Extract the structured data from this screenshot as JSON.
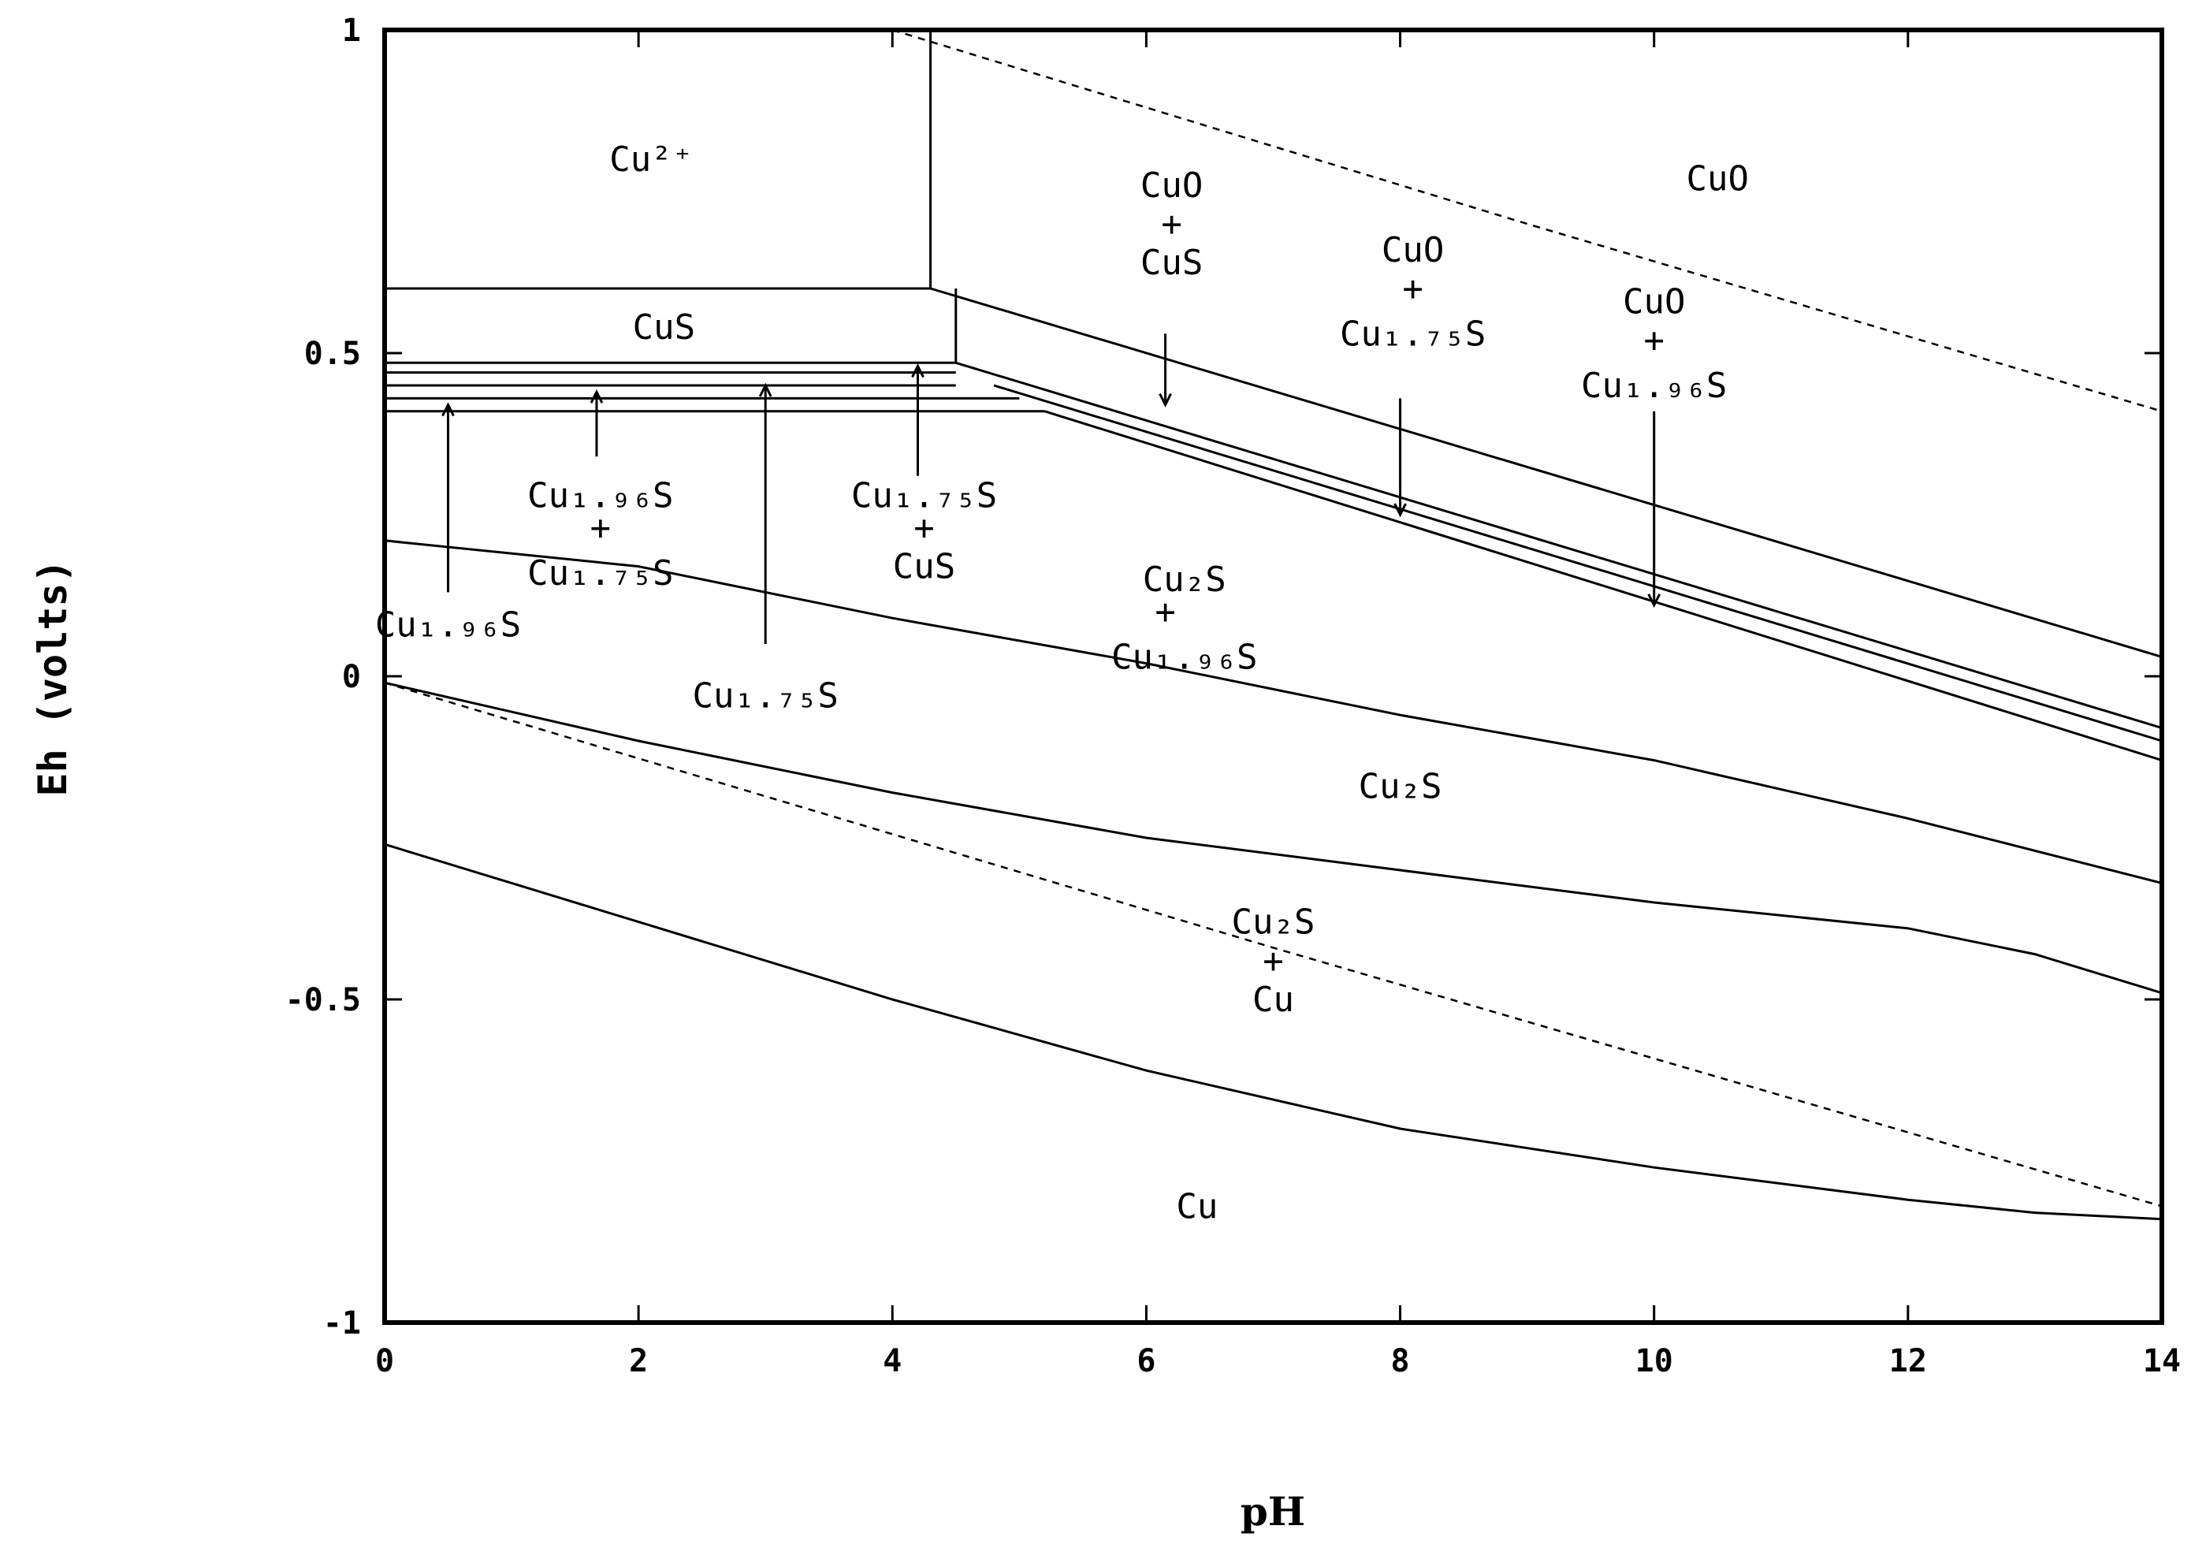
{
  "chart_data": {
    "type": "line",
    "title": "",
    "xlabel": "pH",
    "ylabel": "Eh (volts)",
    "xlim": [
      0,
      14
    ],
    "ylim": [
      -1,
      1
    ],
    "x_ticks": [
      0,
      2,
      4,
      6,
      8,
      10,
      12,
      14
    ],
    "y_ticks": [
      -1,
      -0.5,
      0,
      0.5,
      1
    ],
    "x_tick_labels": [
      "0",
      "2",
      "4",
      "6",
      "8",
      "10",
      "12",
      "14"
    ],
    "y_tick_labels": [
      "-1",
      "-0.5",
      "0",
      "0.5",
      "1"
    ],
    "grid": false,
    "water_stability_lines": [
      {
        "style": "dashed",
        "points": [
          [
            4.0,
            1.0
          ],
          [
            9.0,
            0.7
          ],
          [
            14.0,
            0.41
          ]
        ]
      },
      {
        "style": "dashed",
        "points": [
          [
            0.0,
            -0.01
          ],
          [
            7.0,
            -0.42
          ],
          [
            14.0,
            -0.82
          ]
        ]
      }
    ],
    "boundaries": [
      {
        "points": [
          [
            0.0,
            0.6
          ],
          [
            4.3,
            0.6
          ]
        ]
      },
      {
        "points": [
          [
            4.3,
            0.6
          ],
          [
            4.3,
            1.0
          ]
        ]
      },
      {
        "points": [
          [
            4.3,
            0.6
          ],
          [
            14.0,
            0.03
          ]
        ]
      },
      {
        "points": [
          [
            4.5,
            0.485
          ],
          [
            4.5,
            0.6
          ]
        ]
      },
      {
        "points": [
          [
            0.0,
            0.485
          ],
          [
            4.5,
            0.485
          ]
        ]
      },
      {
        "points": [
          [
            0.0,
            0.47
          ],
          [
            4.5,
            0.47
          ]
        ]
      },
      {
        "points": [
          [
            0.0,
            0.45
          ],
          [
            4.5,
            0.45
          ]
        ]
      },
      {
        "points": [
          [
            0.0,
            0.43
          ],
          [
            5.0,
            0.43
          ]
        ]
      },
      {
        "points": [
          [
            0.0,
            0.41
          ],
          [
            5.2,
            0.41
          ]
        ]
      },
      {
        "points": [
          [
            4.5,
            0.485
          ],
          [
            14.0,
            -0.08
          ]
        ]
      },
      {
        "points": [
          [
            4.8,
            0.45
          ],
          [
            14.0,
            -0.1
          ]
        ]
      },
      {
        "points": [
          [
            5.2,
            0.41
          ],
          [
            14.0,
            -0.13
          ]
        ]
      },
      {
        "points": [
          [
            0.0,
            0.21
          ],
          [
            2.0,
            0.17
          ],
          [
            4.0,
            0.09
          ],
          [
            6.0,
            0.02
          ],
          [
            8.0,
            -0.06
          ],
          [
            10.0,
            -0.13
          ],
          [
            12.0,
            -0.22
          ],
          [
            14.0,
            -0.32
          ]
        ]
      },
      {
        "points": [
          [
            0.0,
            -0.01
          ],
          [
            2.0,
            -0.1
          ],
          [
            4.0,
            -0.18
          ],
          [
            6.0,
            -0.25
          ],
          [
            8.0,
            -0.3
          ],
          [
            10.0,
            -0.35
          ],
          [
            12.0,
            -0.39
          ],
          [
            13.0,
            -0.43
          ],
          [
            14.0,
            -0.49
          ]
        ]
      },
      {
        "points": [
          [
            0.0,
            -0.26
          ],
          [
            2.0,
            -0.38
          ],
          [
            4.0,
            -0.5
          ],
          [
            6.0,
            -0.61
          ],
          [
            8.0,
            -0.7
          ],
          [
            10.0,
            -0.76
          ],
          [
            12.0,
            -0.81
          ],
          [
            13.0,
            -0.83
          ],
          [
            14.0,
            -0.84
          ]
        ]
      }
    ],
    "pointer_arrows": [
      {
        "from": [
          0.5,
          0.13
        ],
        "to": [
          0.5,
          0.42
        ]
      },
      {
        "from": [
          1.67,
          0.34
        ],
        "to": [
          1.67,
          0.44
        ]
      },
      {
        "from": [
          3.0,
          0.05
        ],
        "to": [
          3.0,
          0.45
        ]
      },
      {
        "from": [
          4.2,
          0.31
        ],
        "to": [
          4.2,
          0.48
        ]
      },
      {
        "from": [
          6.15,
          0.53
        ],
        "to": [
          6.15,
          0.42
        ]
      },
      {
        "from": [
          8.0,
          0.43
        ],
        "to": [
          8.0,
          0.25
        ]
      },
      {
        "from": [
          10.0,
          0.41
        ],
        "to": [
          10.0,
          0.11
        ]
      }
    ],
    "regions": [
      {
        "label": "Cu²⁺",
        "x": 2.1,
        "y": 0.8
      },
      {
        "label": "CuS",
        "x": 2.2,
        "y": 0.54
      },
      {
        "label": "CuO",
        "x": 10.5,
        "y": 0.77
      },
      {
        "label": "CuO",
        "x": 6.2,
        "y": 0.76
      },
      {
        "label": "+",
        "x": 6.2,
        "y": 0.7
      },
      {
        "label": "CuS",
        "x": 6.2,
        "y": 0.64
      },
      {
        "label": "CuO",
        "x": 8.1,
        "y": 0.66
      },
      {
        "label": "+",
        "x": 8.1,
        "y": 0.6
      },
      {
        "label": "Cu₁.₇₅S",
        "x": 8.1,
        "y": 0.53
      },
      {
        "label": "CuO",
        "x": 10.0,
        "y": 0.58
      },
      {
        "label": "+",
        "x": 10.0,
        "y": 0.52
      },
      {
        "label": "Cu₁.₉₆S",
        "x": 10.0,
        "y": 0.45
      },
      {
        "label": "Cu₁.₉₆S",
        "x": 1.7,
        "y": 0.28
      },
      {
        "label": "+",
        "x": 1.7,
        "y": 0.23
      },
      {
        "label": "Cu₁.₇₅S",
        "x": 1.7,
        "y": 0.16
      },
      {
        "label": "Cu₁.₇₅S",
        "x": 4.25,
        "y": 0.28
      },
      {
        "label": "+",
        "x": 4.25,
        "y": 0.23
      },
      {
        "label": "CuS",
        "x": 4.25,
        "y": 0.17
      },
      {
        "label": "Cu₁.₉₆S",
        "x": 0.5,
        "y": 0.08
      },
      {
        "label": "Cu₁.₇₅S",
        "x": 3.0,
        "y": -0.03
      },
      {
        "label": "Cu₂S",
        "x": 6.3,
        "y": 0.15
      },
      {
        "label": "+",
        "x": 6.15,
        "y": 0.1
      },
      {
        "label": "Cu₁.₉₆S",
        "x": 6.3,
        "y": 0.03
      },
      {
        "label": "Cu₂S",
        "x": 8.0,
        "y": -0.17
      },
      {
        "label": "Cu₂S",
        "x": 7.0,
        "y": -0.38
      },
      {
        "label": "+",
        "x": 7.0,
        "y": -0.44
      },
      {
        "label": "Cu",
        "x": 7.0,
        "y": -0.5
      },
      {
        "label": "Cu",
        "x": 6.4,
        "y": -0.82
      }
    ]
  }
}
